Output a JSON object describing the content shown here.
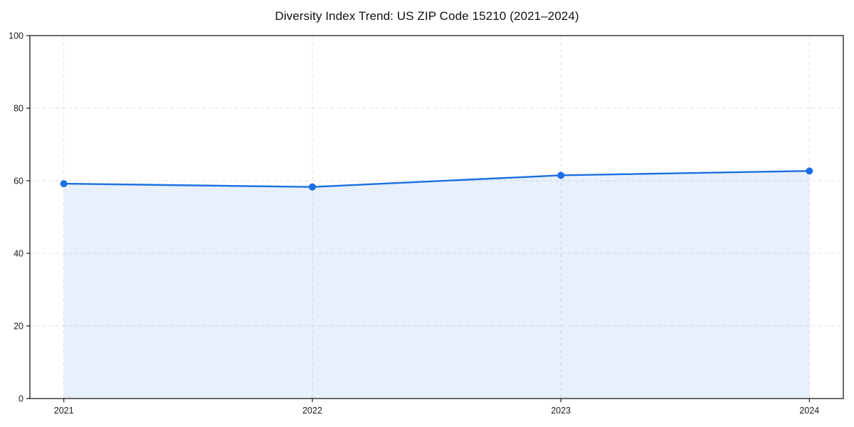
{
  "chart_data": {
    "type": "area",
    "title": "Diversity Index Trend: US ZIP Code 15210 (2021–2024)",
    "x": [
      2021,
      2022,
      2023,
      2024
    ],
    "series": [
      {
        "name": "Diversity Index",
        "values": [
          59.2,
          58.3,
          61.5,
          62.7
        ]
      }
    ],
    "xlabel": "",
    "ylabel": "",
    "ylim": [
      0,
      100
    ],
    "yticks": [
      0,
      20,
      40,
      60,
      80,
      100
    ],
    "xticks": [
      "2021",
      "2022",
      "2023",
      "2024"
    ],
    "grid": true,
    "grid_style": "dashed",
    "legend": false,
    "line_color": "#1b6fe3",
    "marker_color": "#1b6fe3",
    "fill_color": "rgba(27,111,227,0.10)",
    "grid_color": "#e0e0e0",
    "axis_color": "#1a1a1a",
    "tick_label_color": "#1a1a1a",
    "background": "#ffffff"
  }
}
